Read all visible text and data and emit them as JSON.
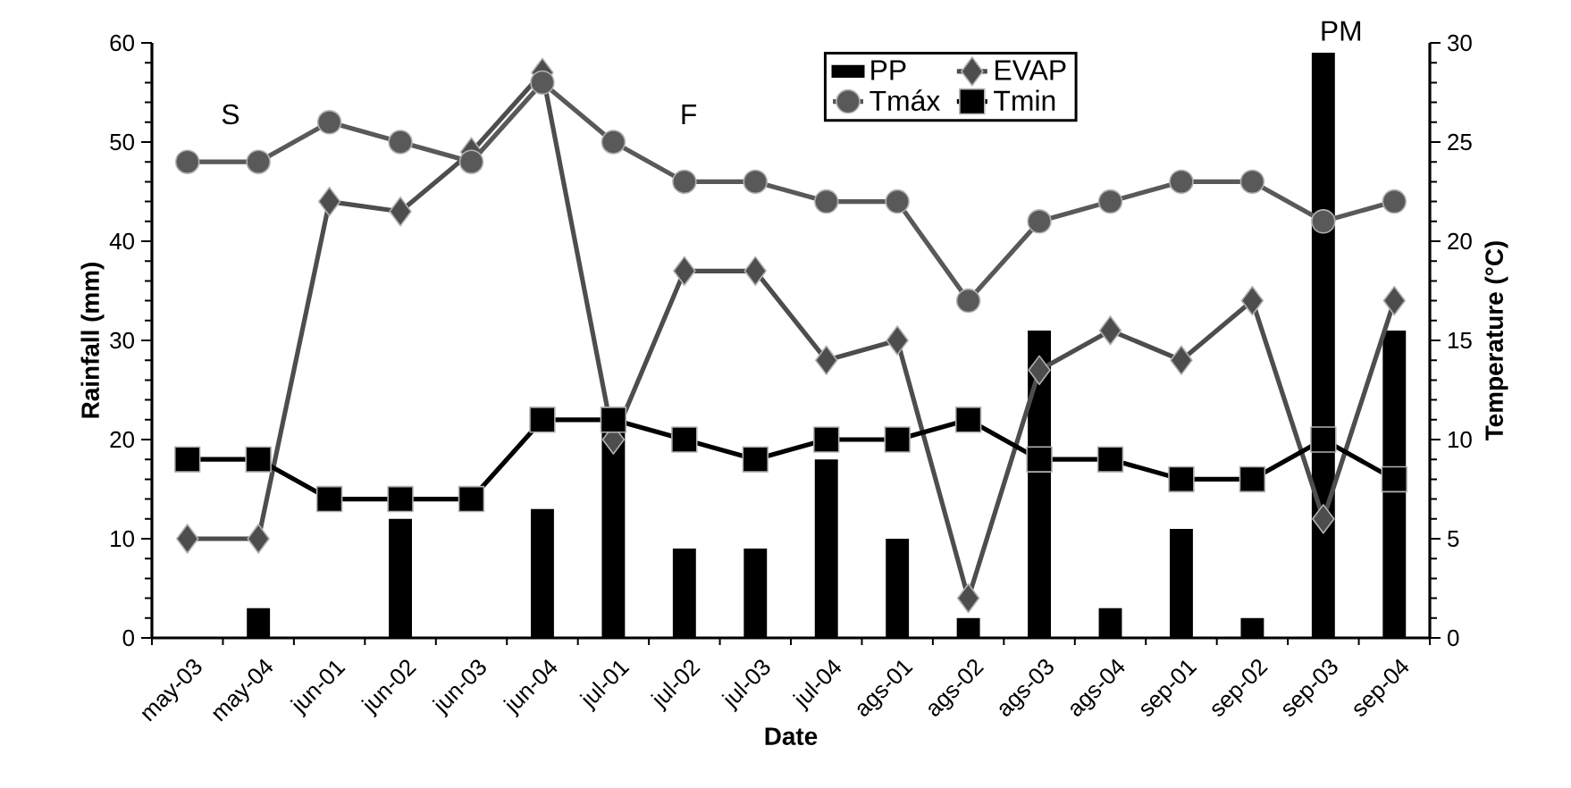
{
  "chart_data": {
    "type": "bar",
    "xlabel": "Date",
    "ylabel": "Rainfall  (mm)",
    "y2label": "Temperature  (°C)",
    "categories": [
      "may-03",
      "may-04",
      "jun-01",
      "jun-02",
      "jun-03",
      "jun-04",
      "jul-01",
      "jul-02",
      "jul-03",
      "jul-04",
      "ags-01",
      "ags-02",
      "ags-03",
      "ags-04",
      "sep-01",
      "sep-02",
      "sep-03",
      "sep-04"
    ],
    "series": [
      {
        "name": "PP",
        "color": "#000000",
        "values": [
          0,
          3,
          0,
          12,
          0,
          13,
          21,
          9,
          9,
          18,
          10,
          2,
          31,
          3,
          11,
          2,
          59,
          31
        ]
      },
      {
        "name": "EVAP",
        "type": "line",
        "marker": "diamond",
        "color": "#4d4d4d",
        "values": [
          10,
          10,
          44,
          43,
          49,
          57,
          20,
          37,
          37,
          28,
          30,
          4,
          27,
          31,
          28,
          34,
          12,
          34
        ]
      },
      {
        "name": "Tmáx",
        "type": "line",
        "marker": "circle",
        "axis": "y2",
        "color": "#595959",
        "values": [
          24,
          24,
          26,
          25,
          24,
          28,
          25,
          23,
          23,
          22,
          22,
          17,
          21,
          22,
          23,
          23,
          21,
          22
        ]
      },
      {
        "name": "Tmin",
        "type": "line",
        "marker": "square",
        "axis": "y2",
        "color": "#000000",
        "values": [
          9,
          9,
          7,
          7,
          7,
          11,
          11,
          10,
          9,
          10,
          10,
          11,
          9,
          9,
          8,
          8,
          10,
          8
        ]
      }
    ],
    "ylim": [
      0,
      60
    ],
    "yticks": [
      0,
      10,
      20,
      30,
      40,
      50,
      60
    ],
    "y2lim": [
      0,
      30
    ],
    "y2ticks": [
      0,
      5,
      10,
      15,
      20,
      25,
      30
    ],
    "legend": "top",
    "annotations": [
      "S",
      "F",
      "PM"
    ]
  }
}
